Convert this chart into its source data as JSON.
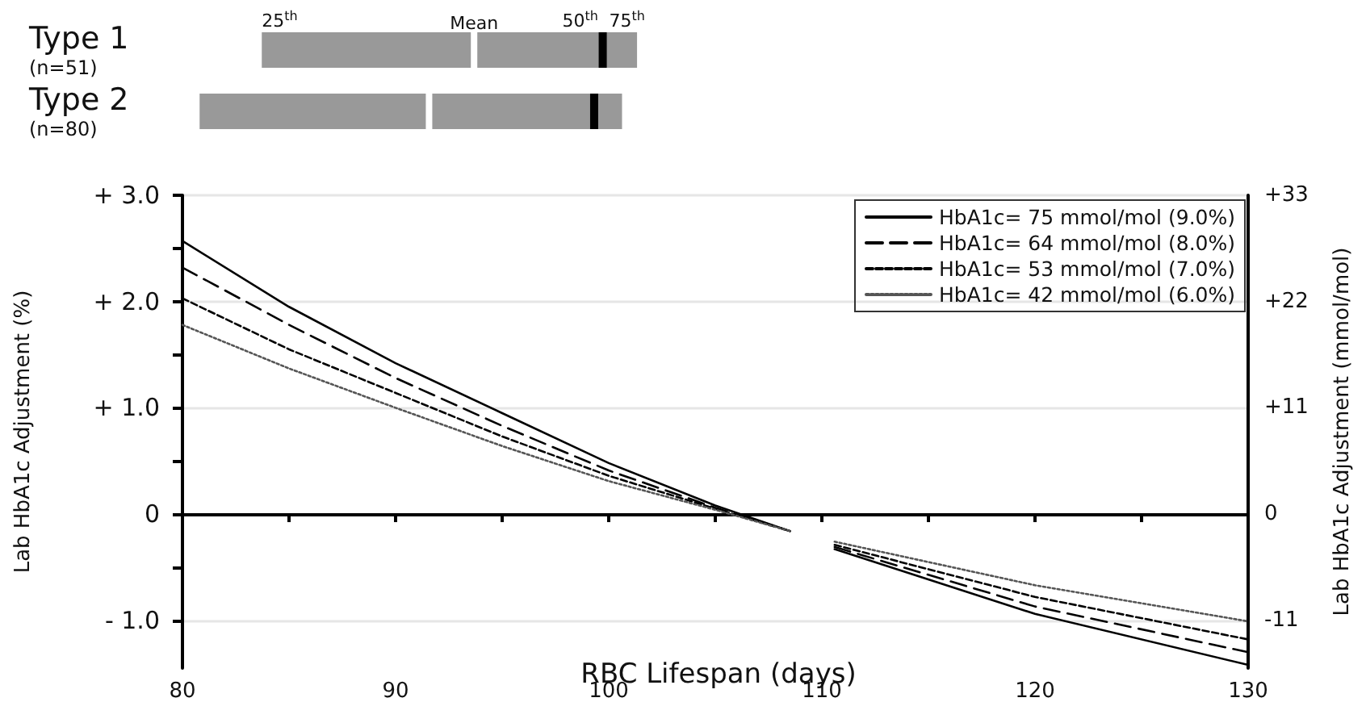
{
  "chart_data": [
    {
      "type": "box",
      "orientation": "horizontal",
      "categories": [
        "Type 1\n(n=51)",
        "Type 2\n(n=80)"
      ],
      "color": "#999999",
      "boxes": [
        {
          "low": 83.7,
          "q1": 83.7,
          "median": 99.6,
          "q3": 101.2,
          "high": 101.2,
          "mean": 93.6
        },
        {
          "low": 80.8,
          "q1": 80.8,
          "median": 99.2,
          "q3": 100.5,
          "high": 100.5,
          "mean": 91.5
        }
      ],
      "xlim": [
        80,
        130
      ],
      "tick_labels": "y",
      "annotations": [
        "25$^{th}$",
        "Mean",
        "50$^{th}$",
        "75$^{th}$"
      ]
    },
    {
      "type": "line",
      "xlabel": "RBC Lifespan (days)",
      "ylabel": "Lab HbA1c Adjustment (%)",
      "y2label": "Lab HbA1c Adjustment (mmol/mol)",
      "x": [
        80,
        85,
        90,
        95,
        100,
        105,
        108.5,
        109.5,
        110.6,
        120,
        130
      ],
      "series": [
        {
          "name": "HbA1c= 75 mmol/mol (9.0%)",
          "color": "#000000",
          "line_style": "solid",
          "values": [
            2.57,
            1.95,
            1.42,
            0.95,
            0.48,
            0.08,
            -0.16,
            null,
            -0.33,
            -0.94,
            -1.42
          ]
        },
        {
          "name": "HbA1c= 64 mmol/mol (8.0%)",
          "color": "#000000",
          "line_style": "dashed",
          "values": [
            2.32,
            1.78,
            1.28,
            0.83,
            0.41,
            0.06,
            -0.16,
            null,
            -0.31,
            -0.87,
            -1.3
          ]
        },
        {
          "name": "HbA1c= 53 mmol/mol (7.0%)",
          "color": "#000000",
          "line_style": "dashed",
          "values": [
            2.03,
            1.55,
            1.14,
            0.73,
            0.36,
            0.05,
            -0.16,
            null,
            -0.29,
            -0.78,
            -1.18
          ]
        },
        {
          "name": "HbA1c= 42 mmol/mol (6.0%)",
          "color": "#555555",
          "line_style": "dotted",
          "values": [
            1.78,
            1.37,
            1.0,
            0.64,
            0.31,
            0.04,
            -0.16,
            null,
            -0.26,
            -0.67,
            -1.01
          ]
        }
      ],
      "xlim": [
        80,
        130
      ],
      "xticks": [
        80,
        {
          "value": 85,
          "label": null
        },
        90,
        {
          "value": 95,
          "label": null
        },
        100,
        {
          "value": 105,
          "label": null
        },
        110,
        {
          "value": 115,
          "label": null
        },
        120,
        {
          "value": 125,
          "label": null
        },
        130
      ],
      "ylim": [
        -1.45,
        3.0
      ],
      "yticks": [
        {
          "value": -1,
          "label": "- 1.0"
        },
        {
          "value": -0.5,
          "label": null
        },
        0,
        {
          "value": 0.5,
          "label": null
        },
        {
          "value": 1,
          "label": "+ 1.0"
        },
        {
          "value": 1.5,
          "label": null
        },
        {
          "value": 2,
          "label": "+ 2.0"
        },
        {
          "value": 2.5,
          "label": null
        },
        {
          "value": 3,
          "label": "+ 3.0"
        }
      ],
      "y2lim": [
        -15.95,
        33
      ],
      "y2ticks": [
        -11,
        0,
        {
          "value": 11,
          "label": "+11"
        },
        {
          "value": 22,
          "label": "+22"
        },
        {
          "value": 33,
          "label": "+33"
        }
      ],
      "grid": "y",
      "legend": "top right"
    }
  ]
}
